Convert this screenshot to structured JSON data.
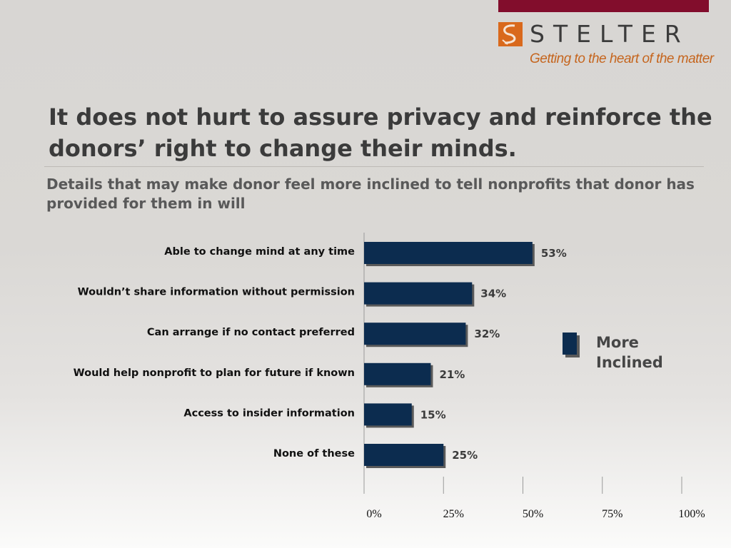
{
  "branding": {
    "logo_text": "STELTER",
    "tagline": "Getting to the heart of the matter",
    "bar_color": "#820d2c",
    "mark_color": "#d9691c"
  },
  "title": "It does not hurt to assure privacy and reinforce the donors’ right to change their minds.",
  "subtitle": "Details that may make donor feel more inclined to tell nonprofits that donor has provided for them in will",
  "chart_data": {
    "type": "bar",
    "orientation": "horizontal",
    "categories": [
      "Able to change mind at any time",
      "Wouldn’t share information without permission",
      "Can arrange if no contact preferred",
      "Would help nonprofit to plan for future if known",
      "Access to insider information",
      "None of these"
    ],
    "series": [
      {
        "name": "More Inclined",
        "values": [
          53,
          34,
          32,
          21,
          15,
          25
        ],
        "labels": [
          "53%",
          "34%",
          "32%",
          "21%",
          "15%",
          "25%"
        ],
        "color": "#0c2c4f"
      }
    ],
    "xlim": [
      0,
      100
    ],
    "xticks": [
      0,
      25,
      50,
      75,
      100
    ],
    "xtick_labels": [
      "0%",
      "25%",
      "50%",
      "75%",
      "100%"
    ],
    "legend_position": "right",
    "grid": false
  }
}
